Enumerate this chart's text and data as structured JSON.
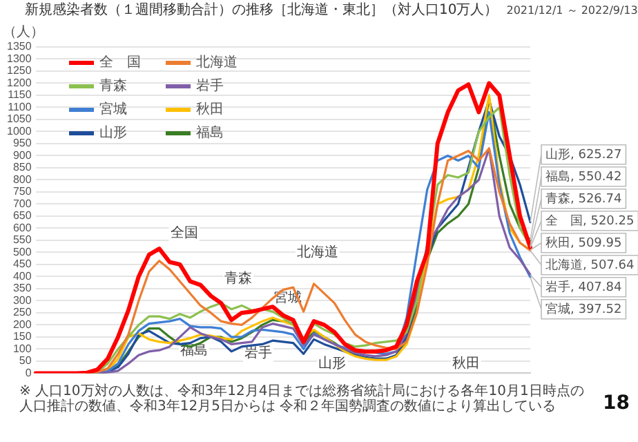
{
  "chart_data": {
    "type": "line",
    "title": "新規感染者数（１週間移動合計）の推移［北海道・東北］（対人口10万人）",
    "subtitle": "2021/12/1 ～ 2022/9/13",
    "ylabel": "（人）",
    "categories": [
      null,
      null,
      null,
      null,
      null,
      null,
      null,
      null,
      null,
      null,
      null,
      null,
      null,
      null,
      null,
      null,
      null,
      null,
      null,
      null,
      null,
      null,
      null,
      null,
      null,
      null,
      null,
      null,
      null,
      null,
      null,
      null,
      null,
      null,
      null,
      null,
      null,
      null,
      null,
      null,
      null,
      null,
      null,
      null,
      null,
      null,
      null,
      null,
      null
    ],
    "ylim": [
      0,
      1350
    ],
    "yticks": [
      0,
      50,
      100,
      150,
      200,
      250,
      300,
      350,
      400,
      450,
      500,
      550,
      600,
      650,
      700,
      750,
      800,
      850,
      900,
      950,
      1000,
      1050,
      1100,
      1150,
      1200,
      1250,
      1300,
      1350
    ],
    "grid": "y",
    "legend": "top left",
    "tick_labels": "y",
    "series": [
      {
        "name": "全　国",
        "color": "#ff0000",
        "values": [
          0,
          0,
          0,
          0,
          0,
          2,
          15,
          60,
          150,
          260,
          400,
          490,
          515,
          460,
          450,
          380,
          365,
          320,
          290,
          220,
          250,
          255,
          265,
          275,
          240,
          220,
          130,
          215,
          200,
          170,
          120,
          95,
          90,
          90,
          95,
          110,
          200,
          380,
          500,
          950,
          1080,
          1170,
          1195,
          1080,
          1200,
          1150,
          900,
          650,
          520.25
        ],
        "value_labels": [
          null,
          null,
          null,
          null,
          null,
          null,
          null,
          null,
          null,
          null,
          null,
          null,
          null,
          null,
          null,
          null,
          null,
          null,
          null,
          null,
          null,
          null,
          null,
          null,
          null,
          null,
          null,
          null,
          null,
          null,
          null,
          null,
          null,
          null,
          null,
          null,
          null,
          null,
          null,
          null,
          null,
          null,
          null,
          null,
          null,
          null,
          null,
          null,
          "全　国, 520.25"
        ]
      },
      {
        "name": "北海道",
        "color": "#ed7d31",
        "values": [
          null,
          null,
          null,
          null,
          null,
          0,
          5,
          20,
          80,
          160,
          300,
          420,
          465,
          430,
          380,
          330,
          280,
          250,
          215,
          205,
          200,
          230,
          270,
          310,
          345,
          355,
          255,
          370,
          330,
          290,
          220,
          160,
          130,
          115,
          105,
          100,
          130,
          250,
          450,
          700,
          880,
          900,
          920,
          880,
          930,
          750,
          620,
          540,
          507.64
        ],
        "value_labels": [
          null,
          null,
          null,
          null,
          null,
          null,
          null,
          null,
          null,
          null,
          null,
          null,
          null,
          null,
          null,
          null,
          null,
          null,
          null,
          null,
          null,
          null,
          null,
          null,
          null,
          null,
          null,
          null,
          null,
          null,
          null,
          null,
          null,
          null,
          null,
          null,
          null,
          null,
          null,
          null,
          null,
          null,
          null,
          null,
          null,
          null,
          null,
          null,
          "北海道, 507.64"
        ]
      },
      {
        "name": "青森",
        "color": "#8cc04f",
        "values": [
          null,
          null,
          null,
          null,
          null,
          0,
          5,
          40,
          100,
          150,
          200,
          235,
          235,
          225,
          245,
          230,
          255,
          275,
          290,
          265,
          280,
          260,
          265,
          255,
          230,
          200,
          135,
          205,
          180,
          160,
          125,
          110,
          115,
          125,
          130,
          135,
          170,
          300,
          520,
          780,
          820,
          810,
          830,
          1000,
          1060,
          1100,
          820,
          600,
          526.74
        ],
        "value_labels": [
          null,
          null,
          null,
          null,
          null,
          null,
          null,
          null,
          null,
          null,
          null,
          null,
          null,
          null,
          null,
          null,
          null,
          null,
          null,
          null,
          null,
          null,
          null,
          null,
          null,
          null,
          null,
          null,
          null,
          null,
          null,
          null,
          null,
          null,
          null,
          null,
          null,
          null,
          null,
          null,
          null,
          null,
          null,
          null,
          null,
          null,
          null,
          null,
          "青森, 526.74"
        ]
      },
      {
        "name": "岩手",
        "color": "#7f5fa8",
        "values": [
          null,
          null,
          null,
          null,
          null,
          0,
          0,
          3,
          10,
          40,
          75,
          90,
          95,
          110,
          150,
          190,
          165,
          150,
          140,
          120,
          125,
          130,
          190,
          205,
          195,
          185,
          115,
          160,
          140,
          120,
          100,
          85,
          75,
          70,
          75,
          90,
          170,
          330,
          530,
          600,
          680,
          730,
          760,
          800,
          930,
          650,
          520,
          470,
          407.84
        ],
        "value_labels": [
          null,
          null,
          null,
          null,
          null,
          null,
          null,
          null,
          null,
          null,
          null,
          null,
          null,
          null,
          null,
          null,
          null,
          null,
          null,
          null,
          null,
          null,
          null,
          null,
          null,
          null,
          null,
          null,
          null,
          null,
          null,
          null,
          null,
          null,
          null,
          null,
          null,
          null,
          null,
          null,
          null,
          null,
          null,
          null,
          null,
          null,
          null,
          null,
          "岩手, 407.84"
        ]
      },
      {
        "name": "宮城",
        "color": "#3f7fd4",
        "values": [
          null,
          null,
          null,
          null,
          null,
          0,
          0,
          8,
          40,
          120,
          175,
          205,
          210,
          215,
          225,
          195,
          190,
          190,
          185,
          150,
          150,
          175,
          180,
          175,
          170,
          160,
          100,
          165,
          140,
          120,
          105,
          95,
          90,
          85,
          80,
          90,
          230,
          500,
          760,
          880,
          900,
          880,
          900,
          850,
          1080,
          780,
          580,
          480,
          397.52
        ],
        "value_labels": [
          null,
          null,
          null,
          null,
          null,
          null,
          null,
          null,
          null,
          null,
          null,
          null,
          null,
          null,
          null,
          null,
          null,
          null,
          null,
          null,
          null,
          null,
          null,
          null,
          null,
          null,
          null,
          null,
          null,
          null,
          null,
          null,
          null,
          null,
          null,
          null,
          null,
          null,
          null,
          null,
          null,
          null,
          null,
          null,
          null,
          null,
          null,
          null,
          "宮城, 397.52"
        ]
      },
      {
        "name": "秋田",
        "color": "#ffc000",
        "values": [
          null,
          null,
          null,
          null,
          null,
          0,
          0,
          10,
          60,
          150,
          165,
          140,
          130,
          125,
          135,
          145,
          160,
          155,
          145,
          140,
          175,
          195,
          215,
          230,
          215,
          200,
          145,
          180,
          150,
          120,
          90,
          70,
          60,
          55,
          55,
          70,
          120,
          250,
          500,
          700,
          720,
          730,
          760,
          900,
          1150,
          800,
          600,
          540,
          509.95
        ],
        "value_labels": [
          null,
          null,
          null,
          null,
          null,
          null,
          null,
          null,
          null,
          null,
          null,
          null,
          null,
          null,
          null,
          null,
          null,
          null,
          null,
          null,
          null,
          null,
          null,
          null,
          null,
          null,
          null,
          null,
          null,
          null,
          null,
          null,
          null,
          null,
          null,
          null,
          null,
          null,
          null,
          null,
          null,
          null,
          null,
          null,
          null,
          null,
          null,
          null,
          "秋田, 509.95"
        ]
      },
      {
        "name": "山形",
        "color": "#1f4e9a",
        "values": [
          null,
          null,
          null,
          null,
          null,
          0,
          0,
          5,
          25,
          80,
          160,
          175,
          150,
          125,
          120,
          125,
          145,
          150,
          130,
          90,
          110,
          115,
          120,
          135,
          130,
          125,
          80,
          140,
          120,
          105,
          90,
          75,
          65,
          60,
          60,
          75,
          150,
          300,
          480,
          600,
          650,
          700,
          850,
          1000,
          1130,
          980,
          900,
          780,
          625.27
        ],
        "value_labels": [
          null,
          null,
          null,
          null,
          null,
          null,
          null,
          null,
          null,
          null,
          null,
          null,
          null,
          null,
          null,
          null,
          null,
          null,
          null,
          null,
          null,
          null,
          null,
          null,
          null,
          null,
          null,
          null,
          null,
          null,
          null,
          null,
          null,
          null,
          null,
          null,
          null,
          null,
          null,
          null,
          null,
          null,
          null,
          null,
          null,
          null,
          null,
          null,
          "山形, 625.27"
        ]
      },
      {
        "name": "福島",
        "color": "#3a7d22",
        "values": [
          null,
          null,
          null,
          null,
          null,
          0,
          0,
          5,
          30,
          90,
          150,
          185,
          185,
          150,
          120,
          110,
          125,
          150,
          150,
          130,
          145,
          170,
          200,
          220,
          215,
          205,
          120,
          175,
          150,
          125,
          95,
          75,
          65,
          60,
          60,
          70,
          130,
          280,
          470,
          580,
          620,
          650,
          700,
          850,
          1140,
          900,
          700,
          600,
          550.42
        ],
        "value_labels": [
          null,
          null,
          null,
          null,
          null,
          null,
          null,
          null,
          null,
          null,
          null,
          null,
          null,
          null,
          null,
          null,
          null,
          null,
          null,
          null,
          null,
          null,
          null,
          null,
          null,
          null,
          null,
          null,
          null,
          null,
          null,
          null,
          null,
          null,
          null,
          null,
          null,
          null,
          null,
          null,
          null,
          null,
          null,
          null,
          null,
          null,
          null,
          null,
          "福島, 550.42"
        ]
      }
    ],
    "annotations": [
      "全国",
      "北海道",
      "青森",
      "宮城",
      "福島",
      "岩手",
      "山形",
      "秋田",
      "※ 人口10万対の人数は、令和3年12月4日までは総務省統計局における各年10月1日時点の人口推計の数値、令和3年12月5日からは 令和２年国勢調査の数値により算出している",
      "18"
    ]
  }
}
